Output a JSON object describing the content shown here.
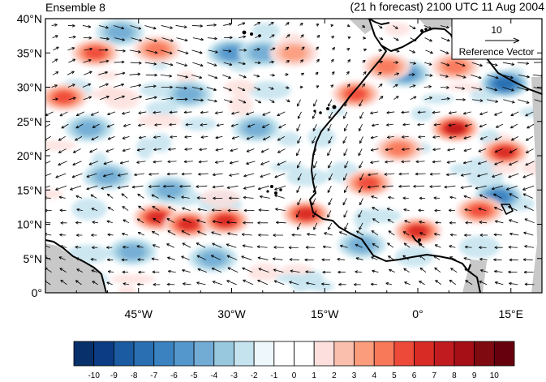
{
  "header": {
    "left_title": "Ensemble 8",
    "right_title": "(21 h forecast) 2100 UTC 11 Aug 2004"
  },
  "map": {
    "y_ticks": [
      "40°N",
      "35°N",
      "30°N",
      "25°N",
      "20°N",
      "15°N",
      "10°N",
      "5°N",
      "0°"
    ],
    "x_ticks": [
      "45°W",
      "30°W",
      "15°W",
      "0°",
      "15°E"
    ],
    "land_mask_color": "#c8c8c8",
    "positive_anomalies": [
      {
        "lon": -57,
        "lat": 28.5,
        "strength": 5
      },
      {
        "lon": -52,
        "lat": 35,
        "strength": 5
      },
      {
        "lon": -42,
        "lat": 35.5,
        "strength": 4
      },
      {
        "lon": -42,
        "lat": 11,
        "strength": 6
      },
      {
        "lon": -37,
        "lat": 10,
        "strength": 6
      },
      {
        "lon": -31,
        "lat": 10.5,
        "strength": 6
      },
      {
        "lon": -18,
        "lat": 11.5,
        "strength": 6
      },
      {
        "lon": -8,
        "lat": 16,
        "strength": 5
      },
      {
        "lon": -10,
        "lat": 29,
        "strength": 5
      },
      {
        "lon": -5,
        "lat": 33,
        "strength": 4
      },
      {
        "lon": -3,
        "lat": 21,
        "strength": 4
      },
      {
        "lon": 6,
        "lat": 24,
        "strength": 7
      },
      {
        "lon": 14,
        "lat": 20.5,
        "strength": 6
      },
      {
        "lon": 0,
        "lat": 9,
        "strength": 6
      },
      {
        "lon": 10,
        "lat": 12,
        "strength": 5
      },
      {
        "lon": 6,
        "lat": 33,
        "strength": 4
      },
      {
        "lon": -20,
        "lat": 35,
        "strength": 3
      }
    ],
    "negative_anomalies": [
      {
        "lon": -48,
        "lat": 38,
        "strength": 3
      },
      {
        "lon": -30,
        "lat": 35,
        "strength": 4
      },
      {
        "lon": -25,
        "lat": 35,
        "strength": 3
      },
      {
        "lon": -37,
        "lat": 29,
        "strength": 3
      },
      {
        "lon": -53,
        "lat": 24,
        "strength": 3
      },
      {
        "lon": -40,
        "lat": 15,
        "strength": 3
      },
      {
        "lon": -33,
        "lat": 5,
        "strength": 3
      },
      {
        "lon": -46,
        "lat": 6,
        "strength": 3
      },
      {
        "lon": -2,
        "lat": 32,
        "strength": 4
      },
      {
        "lon": 14,
        "lat": 30.5,
        "strength": 6
      },
      {
        "lon": 13,
        "lat": 14,
        "strength": 5
      },
      {
        "lon": -9,
        "lat": 7,
        "strength": 3
      },
      {
        "lon": -26,
        "lat": 24,
        "strength": 3
      },
      {
        "lon": -50,
        "lat": 17,
        "strength": 3
      }
    ]
  },
  "legend": {
    "reference_value": "10",
    "reference_label": "Reference Vector"
  },
  "colorbar": {
    "colors": [
      "#08306b",
      "#0b3c84",
      "#1a5ba1",
      "#2a6fb2",
      "#3a82c0",
      "#5497cc",
      "#72acd5",
      "#98c8de",
      "#c4e3ef",
      "#eef8fc",
      "#ffffff",
      "#ffffff",
      "#fde0dd",
      "#fbbfad",
      "#fb9c7d",
      "#f8785a",
      "#ee4a3a",
      "#d92b25",
      "#c11b1f",
      "#a50f15",
      "#7f0a10",
      "#67000d"
    ],
    "labels": [
      "-10",
      "-9",
      "-8",
      "-7",
      "-6",
      "-5",
      "-4",
      "-3",
      "-2",
      "-1",
      "0",
      "1",
      "2",
      "3",
      "4",
      "5",
      "6",
      "7",
      "8",
      "9",
      "10"
    ]
  }
}
